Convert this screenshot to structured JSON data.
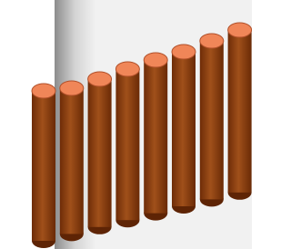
{
  "chart_data": {
    "type": "cylinder",
    "values": [
      165,
      168,
      178,
      189,
      199,
      208,
      220,
      232
    ],
    "color": "#8a3c10",
    "top_color": "#f08658"
  }
}
